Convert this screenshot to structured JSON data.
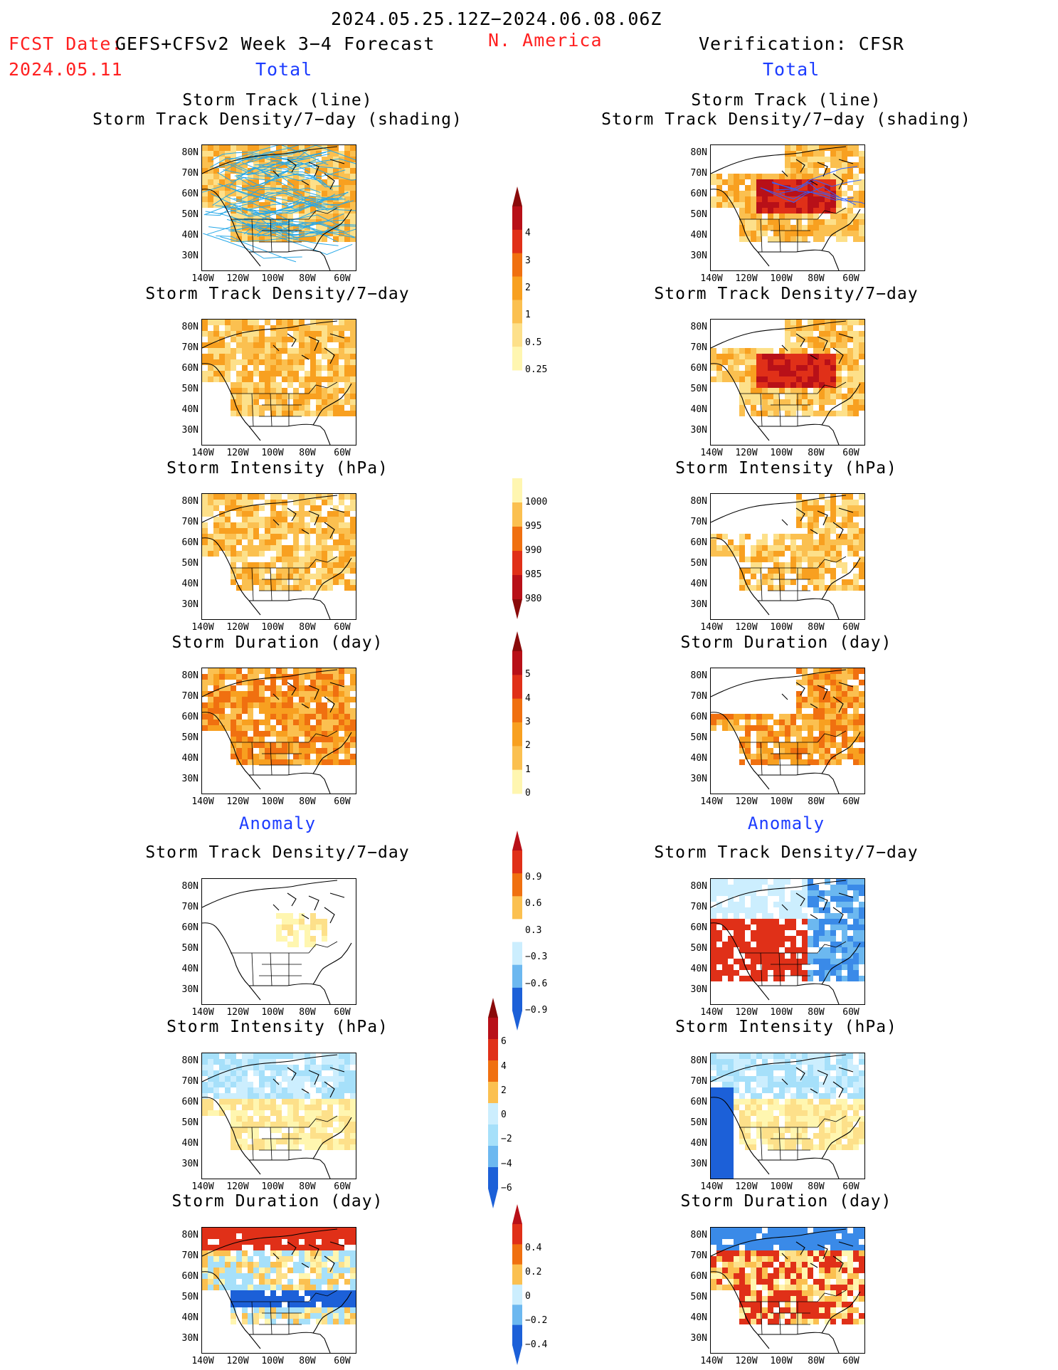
{
  "header": {
    "period": "2024.05.25.12Z−2024.06.08.06Z",
    "fcst_date_label": "FCST Date:",
    "fcst_date_value": "2024.05.11",
    "product": "GEFS+CFSv2 Week 3−4 Forecast",
    "region": "N. America",
    "verification": "Verification: CFSR"
  },
  "sections": {
    "total": "Total",
    "anomaly": "Anomaly"
  },
  "panel_titles": {
    "track_line": "Storm Track (line)",
    "track_density_shading": "Storm Track Density/7−day (shading)",
    "track_density": "Storm Track Density/7−day",
    "intensity": "Storm Intensity (hPa)",
    "duration": "Storm Duration (day)"
  },
  "axes": {
    "lat_labels": [
      "80N",
      "70N",
      "60N",
      "50N",
      "40N",
      "30N"
    ],
    "lon_labels": [
      "140W",
      "120W",
      "100W",
      "80W",
      "60W"
    ]
  },
  "colorbars": {
    "density_total": [
      "4",
      "3",
      "2",
      "1",
      "0.5",
      "0.25"
    ],
    "intensity_total": [
      "1000",
      "995",
      "990",
      "985",
      "980"
    ],
    "duration_total": [
      "5",
      "4",
      "3",
      "2",
      "1",
      "0"
    ],
    "density_anomaly": [
      "0.9",
      "0.6",
      "0.3",
      "−0.3",
      "−0.6",
      "−0.9"
    ],
    "intensity_anomaly": [
      "6",
      "4",
      "2",
      "0",
      "−2",
      "−4",
      "−6"
    ],
    "duration_anomaly": [
      "0.4",
      "0.2",
      "0",
      "−0.2",
      "−0.4"
    ]
  },
  "colors": {
    "warm": [
      "#fff6b0",
      "#fde08a",
      "#fbc050",
      "#f8a020",
      "#f07010",
      "#e03018",
      "#b81018",
      "#8a0a0a"
    ],
    "cool": [
      "#cceefe",
      "#a6e0fa",
      "#6cb8f0",
      "#3a8ae8",
      "#1c60d8"
    ]
  }
}
